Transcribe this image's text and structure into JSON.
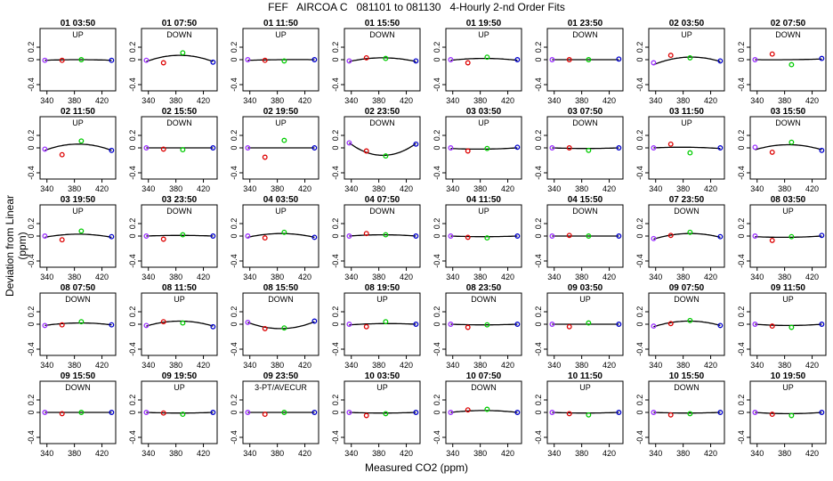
{
  "page": {
    "title": "FEF   AIRCOA C   081101 to 081130   4-Hourly 2-nd Order Fits",
    "xlabel": "Measured CO2 (ppm)",
    "ylabel": "Deviation from Linear (ppm)"
  },
  "chart_data": {
    "type": "scatter",
    "layout": "small-multiples grid, 5 rows x 8 columns",
    "xlim": [
      330,
      440
    ],
    "ylim": [
      -0.5,
      0.5
    ],
    "x_ticks": [
      340,
      380,
      420
    ],
    "x_tick_labels": [
      "340",
      "380",
      "420"
    ],
    "y_ticks": [
      -0.4,
      0,
      0.2
    ],
    "y_tick_labels": [
      "-0.4",
      "0",
      "0.2"
    ],
    "standard_x": [
      337,
      362,
      390,
      434
    ],
    "point_colors": [
      "#9b30ff",
      "#dd0000",
      "#00cc00",
      "#0000cc"
    ],
    "line_color": "#000000",
    "panels": [
      {
        "title": "01 03:50",
        "label": "UP",
        "y": [
          -0.01,
          -0.01,
          0.0,
          -0.01
        ],
        "fit": [
          -0.01,
          0.0,
          -0.01
        ]
      },
      {
        "title": "01 07:50",
        "label": "DOWN",
        "y": [
          -0.01,
          -0.05,
          0.11,
          -0.04
        ],
        "fit": [
          -0.03,
          0.07,
          -0.03
        ]
      },
      {
        "title": "01 11:50",
        "label": "UP",
        "y": [
          0.0,
          -0.01,
          -0.02,
          0.0
        ],
        "fit": [
          -0.01,
          0.0,
          0.0
        ]
      },
      {
        "title": "01 15:50",
        "label": "DOWN",
        "y": [
          -0.02,
          0.03,
          0.02,
          -0.02
        ],
        "fit": [
          -0.03,
          0.03,
          -0.03
        ]
      },
      {
        "title": "01 19:50",
        "label": "UP",
        "y": [
          0.0,
          -0.05,
          0.04,
          0.0
        ],
        "fit": [
          -0.01,
          0.02,
          -0.01
        ]
      },
      {
        "title": "01 23:50",
        "label": "DOWN",
        "y": [
          0.0,
          0.0,
          0.0,
          0.01
        ],
        "fit": [
          0.0,
          0.0,
          0.0
        ]
      },
      {
        "title": "02 03:50",
        "label": "UP",
        "y": [
          -0.05,
          0.07,
          0.03,
          -0.02
        ],
        "fit": [
          -0.08,
          0.04,
          -0.03
        ]
      },
      {
        "title": "02 07:50",
        "label": "DOWN",
        "y": [
          0.0,
          0.09,
          -0.08,
          0.02
        ],
        "fit": [
          0.0,
          0.0,
          0.01
        ]
      },
      {
        "title": "02 11:50",
        "label": "UP",
        "y": [
          -0.02,
          -0.11,
          0.11,
          -0.04
        ],
        "fit": [
          -0.04,
          0.06,
          -0.04
        ]
      },
      {
        "title": "02 15:50",
        "label": "DOWN",
        "y": [
          0.0,
          -0.02,
          -0.03,
          0.0
        ],
        "fit": [
          0.0,
          0.0,
          0.0
        ]
      },
      {
        "title": "02 19:50",
        "label": "UP",
        "y": [
          0.0,
          -0.15,
          0.12,
          0.0
        ],
        "fit": [
          0.0,
          0.0,
          0.0
        ]
      },
      {
        "title": "02 23:50",
        "label": "DOWN",
        "y": [
          0.08,
          -0.05,
          -0.13,
          0.06
        ],
        "fit": [
          0.08,
          -0.12,
          0.07
        ]
      },
      {
        "title": "03 03:50",
        "label": "UP",
        "y": [
          0.0,
          -0.05,
          -0.01,
          0.01
        ],
        "fit": [
          -0.01,
          -0.02,
          0.0
        ]
      },
      {
        "title": "03 07:50",
        "label": "DOWN",
        "y": [
          0.0,
          0.0,
          -0.04,
          0.0
        ],
        "fit": [
          0.0,
          -0.01,
          0.0
        ]
      },
      {
        "title": "03 11:50",
        "label": "UP",
        "y": [
          0.0,
          0.06,
          -0.08,
          0.0
        ],
        "fit": [
          0.0,
          0.01,
          -0.01
        ]
      },
      {
        "title": "03 15:50",
        "label": "DOWN",
        "y": [
          0.01,
          -0.07,
          0.09,
          -0.04
        ],
        "fit": [
          -0.03,
          0.05,
          -0.03
        ]
      },
      {
        "title": "03 19:50",
        "label": "UP",
        "y": [
          0.0,
          -0.06,
          0.08,
          -0.01
        ],
        "fit": [
          -0.02,
          0.03,
          -0.02
        ]
      },
      {
        "title": "03 23:50",
        "label": "DOWN",
        "y": [
          0.0,
          -0.05,
          0.02,
          0.0
        ],
        "fit": [
          0.0,
          0.01,
          0.0
        ]
      },
      {
        "title": "04 03:50",
        "label": "UP",
        "y": [
          0.0,
          -0.03,
          0.06,
          -0.02
        ],
        "fit": [
          -0.02,
          0.04,
          -0.02
        ]
      },
      {
        "title": "04 07:50",
        "label": "DOWN",
        "y": [
          0.0,
          0.04,
          0.02,
          0.0
        ],
        "fit": [
          0.0,
          0.02,
          0.0
        ]
      },
      {
        "title": "04 11:50",
        "label": "UP",
        "y": [
          0.0,
          -0.02,
          -0.03,
          0.0
        ],
        "fit": [
          0.0,
          -0.01,
          0.0
        ]
      },
      {
        "title": "04 15:50",
        "label": "DOWN",
        "y": [
          0.0,
          0.01,
          0.0,
          0.0
        ],
        "fit": [
          0.0,
          0.0,
          0.0
        ]
      },
      {
        "title": "07 23:50",
        "label": "DOWN",
        "y": [
          -0.04,
          0.01,
          0.06,
          -0.01
        ],
        "fit": [
          -0.05,
          0.04,
          -0.02
        ]
      },
      {
        "title": "08 03:50",
        "label": "UP",
        "y": [
          0.0,
          -0.07,
          -0.01,
          0.01
        ],
        "fit": [
          -0.01,
          -0.02,
          0.0
        ]
      },
      {
        "title": "08 07:50",
        "label": "DOWN",
        "y": [
          -0.02,
          -0.01,
          0.04,
          -0.01
        ],
        "fit": [
          -0.02,
          0.02,
          -0.01
        ]
      },
      {
        "title": "08 11:50",
        "label": "UP",
        "y": [
          -0.02,
          0.04,
          0.02,
          -0.04
        ],
        "fit": [
          -0.03,
          0.05,
          -0.03
        ]
      },
      {
        "title": "08 15:50",
        "label": "DOWN",
        "y": [
          0.03,
          -0.07,
          -0.06,
          0.05
        ],
        "fit": [
          0.03,
          -0.07,
          0.04
        ]
      },
      {
        "title": "08 19:50",
        "label": "UP",
        "y": [
          0.0,
          -0.04,
          0.04,
          0.0
        ],
        "fit": [
          -0.01,
          0.01,
          0.0
        ]
      },
      {
        "title": "08 23:50",
        "label": "DOWN",
        "y": [
          0.0,
          -0.05,
          -0.01,
          0.0
        ],
        "fit": [
          0.0,
          -0.01,
          0.0
        ]
      },
      {
        "title": "09 03:50",
        "label": "UP",
        "y": [
          0.0,
          -0.04,
          0.02,
          0.0
        ],
        "fit": [
          0.0,
          0.0,
          0.0
        ]
      },
      {
        "title": "09 07:50",
        "label": "DOWN",
        "y": [
          -0.03,
          0.01,
          0.06,
          -0.02
        ],
        "fit": [
          -0.04,
          0.05,
          -0.02
        ]
      },
      {
        "title": "09 11:50",
        "label": "UP",
        "y": [
          0.0,
          -0.03,
          -0.05,
          0.0
        ],
        "fit": [
          0.0,
          -0.02,
          0.0
        ]
      },
      {
        "title": "09 15:50",
        "label": "DOWN",
        "y": [
          0.0,
          -0.02,
          0.0,
          0.0
        ],
        "fit": [
          0.0,
          0.0,
          0.0
        ]
      },
      {
        "title": "09 19:50",
        "label": "UP",
        "y": [
          0.0,
          -0.01,
          -0.03,
          0.0
        ],
        "fit": [
          0.0,
          -0.01,
          0.0
        ]
      },
      {
        "title": "09 23:50",
        "label": "3-PT/AVECUR",
        "y": [
          0.0,
          -0.03,
          0.0,
          0.0
        ],
        "fit": [
          0.0,
          0.0,
          0.0
        ]
      },
      {
        "title": "10 03:50",
        "label": "UP",
        "y": [
          0.0,
          -0.05,
          -0.02,
          0.0
        ],
        "fit": [
          0.0,
          -0.01,
          0.0
        ]
      },
      {
        "title": "10 07:50",
        "label": "DOWN",
        "y": [
          0.0,
          0.04,
          0.05,
          0.0
        ],
        "fit": [
          0.0,
          0.03,
          0.0
        ]
      },
      {
        "title": "10 11:50",
        "label": "UP",
        "y": [
          0.0,
          -0.02,
          -0.04,
          0.0
        ],
        "fit": [
          0.0,
          -0.01,
          0.0
        ]
      },
      {
        "title": "10 15:50",
        "label": "DOWN",
        "y": [
          0.0,
          -0.04,
          -0.02,
          0.0
        ],
        "fit": [
          0.0,
          -0.01,
          0.0
        ]
      },
      {
        "title": "10 19:50",
        "label": "UP",
        "y": [
          0.0,
          -0.03,
          -0.05,
          0.0
        ],
        "fit": [
          0.0,
          -0.02,
          0.0
        ]
      }
    ]
  }
}
